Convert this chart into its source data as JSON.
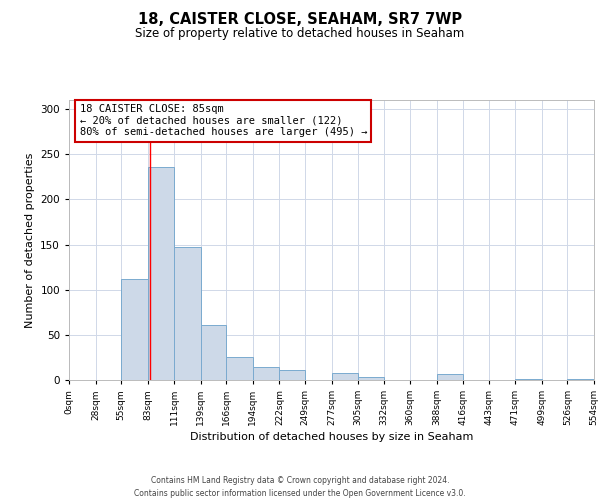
{
  "title": "18, CAISTER CLOSE, SEAHAM, SR7 7WP",
  "subtitle": "Size of property relative to detached houses in Seaham",
  "xlabel": "Distribution of detached houses by size in Seaham",
  "ylabel": "Number of detached properties",
  "bar_color": "#cdd9e8",
  "bar_edge_color": "#7aaacf",
  "bin_edges": [
    0,
    28,
    55,
    83,
    111,
    139,
    166,
    194,
    222,
    249,
    277,
    305,
    332,
    360,
    388,
    416,
    443,
    471,
    499,
    526,
    554
  ],
  "bar_heights": [
    0,
    0,
    112,
    236,
    147,
    61,
    25,
    14,
    11,
    0,
    8,
    3,
    0,
    0,
    7,
    0,
    0,
    1,
    0,
    1
  ],
  "red_line_x": 85,
  "ylim": [
    0,
    310
  ],
  "yticks": [
    0,
    50,
    100,
    150,
    200,
    250,
    300
  ],
  "xtick_labels": [
    "0sqm",
    "28sqm",
    "55sqm",
    "83sqm",
    "111sqm",
    "139sqm",
    "166sqm",
    "194sqm",
    "222sqm",
    "249sqm",
    "277sqm",
    "305sqm",
    "332sqm",
    "360sqm",
    "388sqm",
    "416sqm",
    "443sqm",
    "471sqm",
    "499sqm",
    "526sqm",
    "554sqm"
  ],
  "annotation_title": "18 CAISTER CLOSE: 85sqm",
  "annotation_line1": "← 20% of detached houses are smaller (122)",
  "annotation_line2": "80% of semi-detached houses are larger (495) →",
  "annotation_box_color": "#ffffff",
  "annotation_box_edge_color": "#cc0000",
  "footer_line1": "Contains HM Land Registry data © Crown copyright and database right 2024.",
  "footer_line2": "Contains public sector information licensed under the Open Government Licence v3.0.",
  "background_color": "#ffffff",
  "grid_color": "#d0d8e8",
  "title_fontsize": 10.5,
  "subtitle_fontsize": 8.5,
  "tick_fontsize": 6.5,
  "ylabel_fontsize": 8,
  "xlabel_fontsize": 8,
  "footer_fontsize": 5.5,
  "annotation_fontsize": 7.5
}
